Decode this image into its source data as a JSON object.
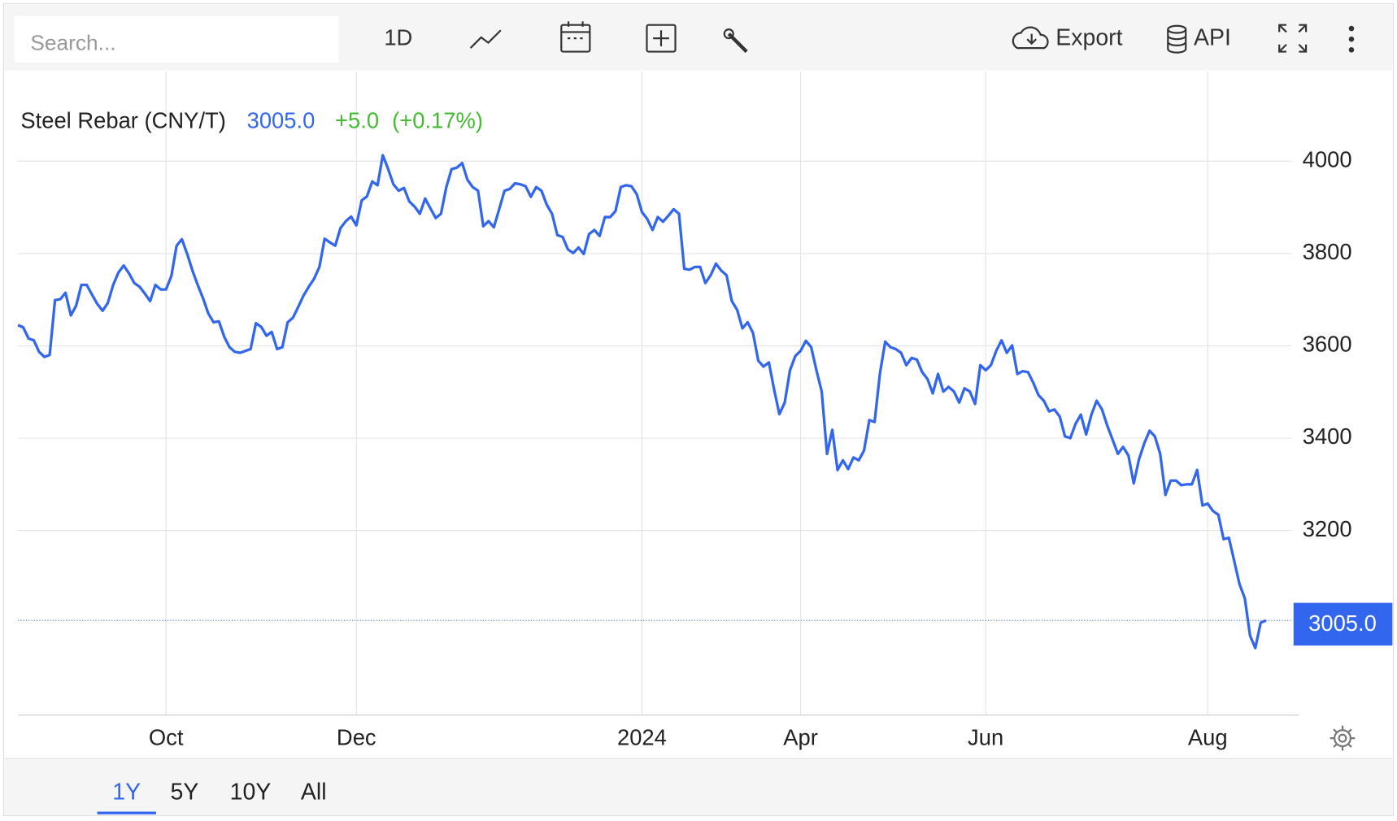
{
  "toolbar": {
    "search_placeholder": "Search...",
    "interval": "1D",
    "export": "Export",
    "api": "API"
  },
  "ranges": [
    "1Y",
    "5Y",
    "10Y",
    "All"
  ],
  "chart_data": {
    "type": "line",
    "last": "3005.0",
    "change": "+5.0",
    "change_pct": "(+0.17%)",
    "categories": [
      null,
      null,
      null,
      null,
      null,
      null,
      null,
      null,
      null,
      null,
      null,
      null,
      null,
      null,
      null,
      null,
      null,
      null,
      null,
      null,
      null,
      null,
      null,
      null,
      null,
      null,
      null,
      null,
      "Oct",
      null,
      null,
      null,
      null,
      null,
      null,
      null,
      null,
      null,
      null,
      null,
      null,
      null,
      null,
      null,
      null,
      null,
      null,
      null,
      null,
      null,
      null,
      null,
      null,
      null,
      null,
      null,
      null,
      null,
      null,
      null,
      null,
      null,
      null,
      null,
      "Dec",
      null,
      null,
      null,
      null,
      null,
      null,
      null,
      null,
      null,
      null,
      null,
      null,
      null,
      null,
      null,
      null,
      null,
      null,
      null,
      null,
      null,
      null,
      null,
      null,
      null,
      null,
      null,
      null,
      null,
      null,
      null,
      null,
      null,
      null,
      null,
      null,
      null,
      null,
      null,
      null,
      null,
      null,
      null,
      null,
      null,
      null,
      null,
      null,
      null,
      null,
      null,
      null,
      null,
      "2024",
      null,
      null,
      null,
      null,
      null,
      null,
      null,
      null,
      null,
      null,
      null,
      null,
      null,
      null,
      null,
      null,
      null,
      null,
      null,
      null,
      null,
      null,
      null,
      null,
      null,
      null,
      null,
      null,
      null,
      "Apr",
      null,
      null,
      null,
      null,
      null,
      null,
      null,
      null,
      null,
      null,
      null,
      null,
      null,
      null,
      null,
      null,
      null,
      null,
      null,
      null,
      null,
      null,
      null,
      null,
      null,
      null,
      null,
      null,
      null,
      null,
      null,
      null,
      null,
      null,
      "Jun",
      null,
      null,
      null,
      null,
      null,
      null,
      null,
      null,
      null,
      null,
      null,
      null,
      null,
      null,
      null,
      null,
      null,
      null,
      null,
      null,
      null,
      null,
      null,
      null,
      null,
      null,
      null,
      null,
      null,
      null,
      null,
      null,
      null,
      null,
      null,
      null,
      null,
      null,
      null,
      null,
      null,
      "Aug",
      null,
      null,
      null,
      null,
      null,
      null,
      null,
      null,
      null,
      null,
      null
    ],
    "series": [
      {
        "name": "Steel Rebar (CNY/T)",
        "color": "#3366ee",
        "values": [
          3645,
          3640,
          3616,
          3612,
          3587,
          3576,
          3580,
          3699,
          3701,
          3715,
          3666,
          3687,
          3732,
          3732,
          3711,
          3691,
          3676,
          3693,
          3732,
          3759,
          3774,
          3757,
          3736,
          3728,
          3713,
          3697,
          3732,
          3722,
          3722,
          3751,
          3817,
          3831,
          3799,
          3763,
          3732,
          3703,
          3670,
          3651,
          3653,
          3620,
          3597,
          3587,
          3585,
          3589,
          3593,
          3649,
          3641,
          3622,
          3630,
          3593,
          3597,
          3651,
          3661,
          3684,
          3709,
          3728,
          3745,
          3771,
          3832,
          3824,
          3817,
          3855,
          3870,
          3880,
          3861,
          3915,
          3924,
          3956,
          3948,
          4013,
          3983,
          3950,
          3936,
          3942,
          3913,
          3902,
          3886,
          3919,
          3898,
          3877,
          3886,
          3944,
          3983,
          3986,
          3996,
          3960,
          3944,
          3936,
          3859,
          3870,
          3857,
          3896,
          3936,
          3940,
          3952,
          3950,
          3946,
          3923,
          3944,
          3936,
          3906,
          3886,
          3840,
          3836,
          3809,
          3801,
          3813,
          3799,
          3842,
          3851,
          3838,
          3879,
          3879,
          3892,
          3944,
          3948,
          3946,
          3929,
          3890,
          3875,
          3851,
          3879,
          3869,
          3882,
          3896,
          3886,
          3767,
          3765,
          3771,
          3771,
          3736,
          3753,
          3778,
          3763,
          3753,
          3697,
          3678,
          3638,
          3651,
          3628,
          3568,
          3555,
          3564,
          3505,
          3452,
          3477,
          3547,
          3578,
          3589,
          3611,
          3597,
          3547,
          3501,
          3366,
          3418,
          3331,
          3352,
          3333,
          3358,
          3352,
          3373,
          3439,
          3435,
          3539,
          3609,
          3597,
          3593,
          3585,
          3558,
          3574,
          3570,
          3543,
          3528,
          3497,
          3539,
          3501,
          3511,
          3501,
          3477,
          3508,
          3501,
          3474,
          3558,
          3547,
          3558,
          3589,
          3612,
          3585,
          3601,
          3539,
          3545,
          3543,
          3520,
          3493,
          3481,
          3458,
          3462,
          3447,
          3404,
          3400,
          3431,
          3451,
          3408,
          3451,
          3481,
          3462,
          3427,
          3397,
          3366,
          3381,
          3362,
          3302,
          3354,
          3389,
          3416,
          3404,
          3366,
          3277,
          3308,
          3308,
          3298,
          3300,
          3300,
          3331,
          3254,
          3258,
          3242,
          3234,
          3181,
          3184,
          3134,
          3084,
          3053,
          2972,
          2945,
          3000,
          3005
        ]
      }
    ],
    "ylim": [
      2800,
      4195
    ],
    "yticks": [
      3200,
      3400,
      3600,
      3800,
      4000
    ],
    "grid": true
  }
}
